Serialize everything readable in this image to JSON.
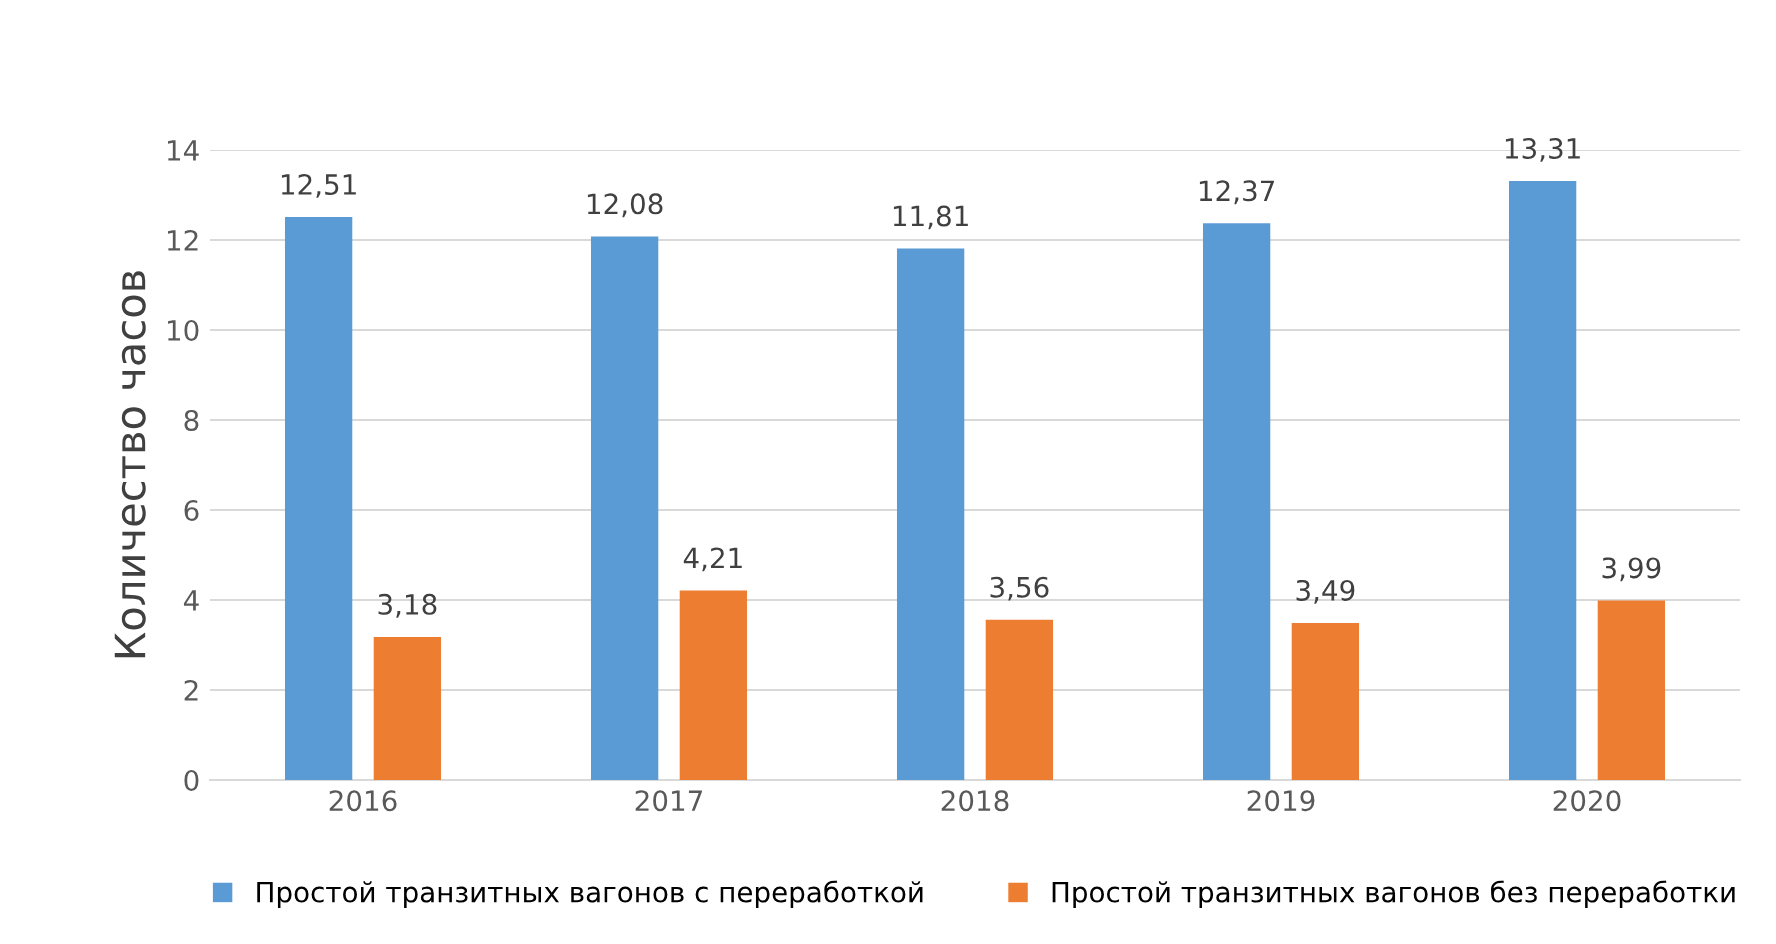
{
  "chart_data": {
    "type": "bar",
    "ylabel": "Количество часов",
    "categories": [
      "2016",
      "2017",
      "2018",
      "2019",
      "2020"
    ],
    "series": [
      {
        "name": "Простой транзитных вагонов с переработкой",
        "color": "#5b9bd5",
        "values": [
          12.51,
          12.08,
          11.81,
          12.37,
          13.31
        ],
        "value_labels": [
          "12,51",
          "12,08",
          "11,81",
          "12,37",
          "13,31"
        ]
      },
      {
        "name": "Простой транзитных вагонов без переработки",
        "color": "#ed7d31",
        "values": [
          3.18,
          4.21,
          3.56,
          3.49,
          3.99
        ],
        "value_labels": [
          "3,18",
          "4,21",
          "3,56",
          "3,49",
          "3,99"
        ]
      }
    ],
    "ylim": [
      0,
      14
    ],
    "yticks": [
      0,
      2,
      4,
      6,
      8,
      10,
      12,
      14
    ],
    "grid": "y",
    "legend": "bottom"
  }
}
